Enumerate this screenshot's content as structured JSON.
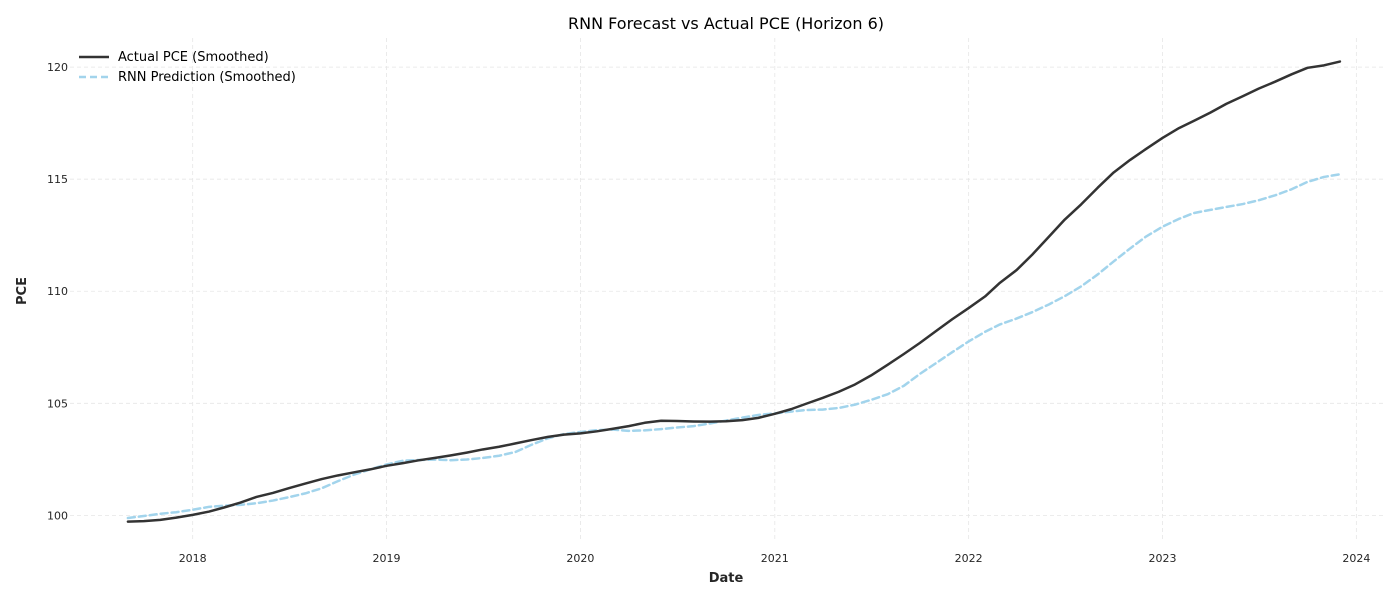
{
  "chart_data": {
    "type": "line",
    "title": "RNN Forecast vs Actual PCE (Horizon 6)",
    "xlabel": "Date",
    "ylabel": "PCE",
    "x_axis": "date",
    "xlim": [
      "2017-05-15",
      "2024-02-22"
    ],
    "ylim": [
      98.9,
      121.3
    ],
    "xticks": [
      "2018",
      "2019",
      "2020",
      "2021",
      "2022",
      "2023",
      "2024"
    ],
    "yticks": [
      100,
      105,
      110,
      115,
      120
    ],
    "grid": true,
    "legend_position": "top-left",
    "x": [
      "2017-09",
      "2017-10",
      "2017-11",
      "2017-12",
      "2018-01",
      "2018-02",
      "2018-03",
      "2018-04",
      "2018-05",
      "2018-06",
      "2018-07",
      "2018-08",
      "2018-09",
      "2018-10",
      "2018-11",
      "2018-12",
      "2019-01",
      "2019-02",
      "2019-03",
      "2019-04",
      "2019-05",
      "2019-06",
      "2019-07",
      "2019-08",
      "2019-09",
      "2019-10",
      "2019-11",
      "2019-12",
      "2020-01",
      "2020-02",
      "2020-03",
      "2020-04",
      "2020-05",
      "2020-06",
      "2020-07",
      "2020-08",
      "2020-09",
      "2020-10",
      "2020-11",
      "2020-12",
      "2021-01",
      "2021-02",
      "2021-03",
      "2021-04",
      "2021-05",
      "2021-06",
      "2021-07",
      "2021-08",
      "2021-09",
      "2021-10",
      "2021-11",
      "2021-12",
      "2022-01",
      "2022-02",
      "2022-03",
      "2022-04",
      "2022-05",
      "2022-06",
      "2022-07",
      "2022-08",
      "2022-09",
      "2022-10",
      "2022-11",
      "2022-12",
      "2023-01",
      "2023-02",
      "2023-03",
      "2023-04",
      "2023-05",
      "2023-06",
      "2023-07",
      "2023-08",
      "2023-09",
      "2023-10",
      "2023-11",
      "2023-12"
    ],
    "series": [
      {
        "name": "Actual PCE (Smoothed)",
        "color": "#333333",
        "style": "solid",
        "values": [
          99.72,
          99.74,
          99.8,
          99.9,
          100.02,
          100.17,
          100.35,
          100.57,
          100.82,
          101.0,
          101.21,
          101.42,
          101.62,
          101.78,
          101.92,
          102.05,
          102.21,
          102.33,
          102.45,
          102.56,
          102.67,
          102.8,
          102.94,
          103.06,
          103.21,
          103.36,
          103.5,
          103.6,
          103.66,
          103.75,
          103.86,
          103.98,
          104.13,
          104.22,
          104.21,
          104.19,
          104.18,
          104.2,
          104.25,
          104.35,
          104.53,
          104.74,
          104.98,
          105.24,
          105.51,
          105.84,
          106.24,
          106.71,
          107.2,
          107.69,
          108.23,
          108.75,
          109.25,
          109.77,
          110.38,
          110.94,
          111.64,
          112.43,
          113.2,
          113.88,
          114.62,
          115.3,
          115.86,
          116.35,
          116.84,
          117.28,
          117.6,
          117.97,
          118.36,
          118.7,
          119.04,
          119.35,
          119.68,
          119.97,
          120.08,
          120.25
        ]
      },
      {
        "name": "RNN Prediction (Smoothed)",
        "color": "#a2d4ec",
        "style": "dashed",
        "values": [
          99.88,
          99.97,
          100.07,
          100.14,
          100.25,
          100.38,
          100.43,
          100.47,
          100.54,
          100.66,
          100.81,
          100.98,
          101.21,
          101.52,
          101.82,
          102.05,
          102.27,
          102.44,
          102.47,
          102.49,
          102.46,
          102.49,
          102.56,
          102.66,
          102.83,
          103.15,
          103.44,
          103.63,
          103.72,
          103.8,
          103.83,
          103.77,
          103.79,
          103.85,
          103.92,
          103.98,
          104.1,
          104.23,
          104.36,
          104.48,
          104.55,
          104.63,
          104.7,
          104.72,
          104.79,
          104.94,
          105.15,
          105.4,
          105.78,
          106.31,
          106.8,
          107.28,
          107.76,
          108.19,
          108.52,
          108.78,
          109.07,
          109.41,
          109.78,
          110.22,
          110.75,
          111.33,
          111.91,
          112.44,
          112.88,
          113.23,
          113.49,
          113.63,
          113.76,
          113.89,
          114.06,
          114.28,
          114.55,
          114.88,
          115.1,
          115.22
        ]
      }
    ]
  }
}
